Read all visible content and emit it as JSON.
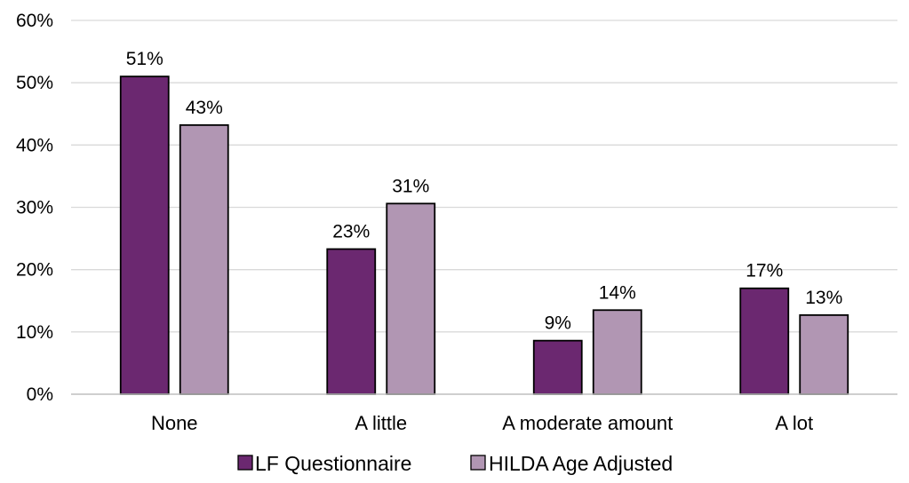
{
  "chart_data": {
    "type": "bar",
    "categories": [
      "None",
      "A little",
      "A moderate amount",
      "A lot"
    ],
    "series": [
      {
        "name": "LF Questionnaire",
        "values": [
          51,
          23,
          9,
          17
        ],
        "labels": [
          "51%",
          "23%",
          "9%",
          "17%"
        ],
        "color": "#6b2870"
      },
      {
        "name": "HILDA Age Adjusted",
        "values": [
          43,
          31,
          14,
          13
        ],
        "labels": [
          "43%",
          "31%",
          "14%",
          "13%"
        ],
        "color": "#b196b3"
      }
    ],
    "precise_values": [
      [
        51.0,
        23.3,
        8.6,
        17.0
      ],
      [
        43.2,
        30.6,
        13.5,
        12.7
      ]
    ],
    "yticks": [
      "0%",
      "10%",
      "20%",
      "30%",
      "40%",
      "50%",
      "60%"
    ],
    "ylim": [
      0,
      60
    ],
    "grid": true,
    "legend_position": "bottom",
    "title": "",
    "xlabel": "",
    "ylabel": ""
  }
}
